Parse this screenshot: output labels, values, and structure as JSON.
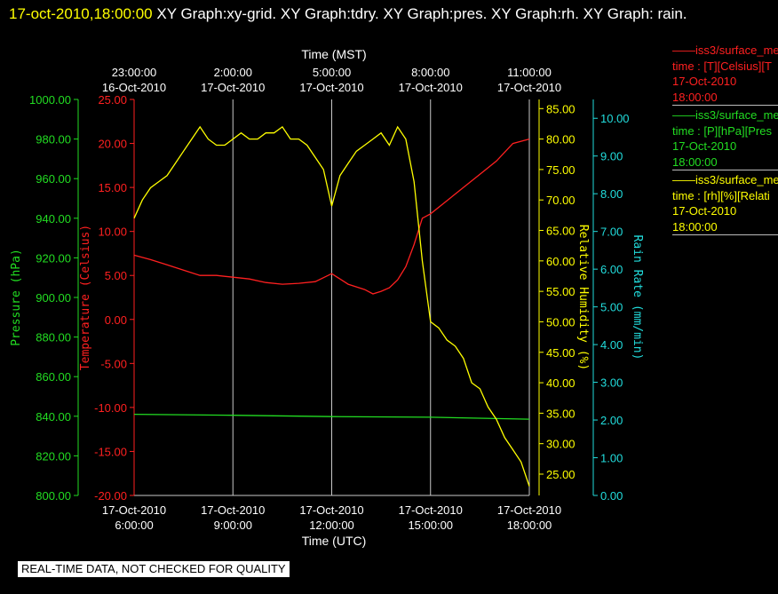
{
  "header": {
    "timestamp": "17-oct-2010,18:00:00",
    "graphs": "XY Graph:xy-grid.  XY Graph:tdry.  XY Graph:pres.  XY Graph:rh.  XY Graph: rain."
  },
  "legend": {
    "items": [
      {
        "series": "iss3/surface_me",
        "line2": "time : [T][Celsius][T",
        "date": "17-Oct-2010",
        "time": "18:00:00",
        "color": "#ff2020"
      },
      {
        "series": "iss3/surface_me",
        "line2": "time : [P][hPa][Pres",
        "date": "17-Oct-2010",
        "time": "18:00:00",
        "color": "#22dd22"
      },
      {
        "series": "iss3/surface_me",
        "line2": "time : [rh][%][Relati",
        "date": "17-Oct-2010",
        "time": "18:00:00",
        "color": "#ffff00"
      }
    ]
  },
  "disclaimer": "REAL-TIME DATA, NOT CHECKED FOR QUALITY",
  "chart_data": {
    "type": "line",
    "x_range_hours_utc": [
      6,
      18
    ],
    "xlabel_bottom": "Time (UTC)",
    "xlabel_top": "Time (MST)",
    "x_ticks_bottom": [
      {
        "h": 6,
        "date": "17-Oct-2010",
        "time": "6:00:00"
      },
      {
        "h": 9,
        "date": "17-Oct-2010",
        "time": "9:00:00"
      },
      {
        "h": 12,
        "date": "17-Oct-2010",
        "time": "12:00:00"
      },
      {
        "h": 15,
        "date": "17-Oct-2010",
        "time": "15:00:00"
      },
      {
        "h": 18,
        "date": "17-Oct-2010",
        "time": "18:00:00"
      }
    ],
    "x_ticks_top": [
      {
        "h": 6,
        "time": "23:00:00",
        "date": "16-Oct-2010"
      },
      {
        "h": 9,
        "time": "2:00:00",
        "date": "17-Oct-2010"
      },
      {
        "h": 12,
        "time": "5:00:00",
        "date": "17-Oct-2010"
      },
      {
        "h": 15,
        "time": "8:00:00",
        "date": "17-Oct-2010"
      },
      {
        "h": 18,
        "time": "11:00:00",
        "date": "17-Oct-2010"
      }
    ],
    "grid": "vertical",
    "axes": {
      "pressure": {
        "label": "Pressure (hPa)",
        "range": [
          800,
          1000
        ],
        "ticks": [
          "800.00",
          "820.00",
          "840.00",
          "860.00",
          "880.00",
          "900.00",
          "920.00",
          "940.00",
          "960.00",
          "980.00",
          "1000.00"
        ],
        "color": "#22dd22"
      },
      "temperature": {
        "label": "Temperature (Celsius)",
        "range": [
          -20,
          25
        ],
        "ticks": [
          "-20.00",
          "-15.00",
          "-10.00",
          "-5.00",
          "0.00",
          "5.00",
          "10.00",
          "15.00",
          "20.00",
          "25.00"
        ],
        "color": "#ff2020"
      },
      "rh": {
        "label": "Relative Humidity (%)",
        "range": [
          21.5,
          86.5
        ],
        "ticks": [
          "25.00",
          "30.00",
          "35.00",
          "40.00",
          "45.00",
          "50.00",
          "55.00",
          "60.00",
          "65.00",
          "70.00",
          "75.00",
          "80.00",
          "85.00"
        ],
        "color": "#ffff00"
      },
      "rain": {
        "label": "Rain Rate (mm/min)",
        "range": [
          0,
          10.5
        ],
        "ticks": [
          "0.00",
          "1.00",
          "2.00",
          "3.00",
          "4.00",
          "5.00",
          "6.00",
          "7.00",
          "8.00",
          "9.00",
          "10.00"
        ],
        "color": "#22dddd"
      }
    },
    "series": [
      {
        "axis": "temperature",
        "color": "#ff2020",
        "x": [
          6,
          6.5,
          7,
          7.5,
          8,
          8.5,
          9,
          9.5,
          10,
          10.5,
          11,
          11.5,
          12,
          12.5,
          13,
          13.25,
          13.5,
          13.75,
          14,
          14.25,
          14.5,
          14.75,
          15,
          15.5,
          16,
          16.5,
          17,
          17.5,
          18
        ],
        "y": [
          7.3,
          6.8,
          6.2,
          5.6,
          5.0,
          5.0,
          4.8,
          4.6,
          4.2,
          4.0,
          4.1,
          4.3,
          5.2,
          4.0,
          3.4,
          2.9,
          3.2,
          3.6,
          4.5,
          6.0,
          8.5,
          11.5,
          12.0,
          13.5,
          15.0,
          16.5,
          18.0,
          20.0,
          20.5
        ]
      },
      {
        "axis": "pressure",
        "color": "#22dd22",
        "x": [
          6,
          9,
          12,
          15,
          18
        ],
        "y": [
          841.0,
          840.5,
          839.8,
          839.5,
          838.5
        ]
      },
      {
        "axis": "rh",
        "color": "#ffff00",
        "x": [
          6,
          6.25,
          6.5,
          6.75,
          7,
          7.25,
          7.5,
          7.75,
          8,
          8.25,
          8.5,
          8.75,
          9,
          9.25,
          9.5,
          9.75,
          10,
          10.25,
          10.5,
          10.75,
          11,
          11.25,
          11.5,
          11.75,
          12,
          12.25,
          12.5,
          12.75,
          13,
          13.25,
          13.5,
          13.75,
          14,
          14.25,
          14.5,
          14.75,
          15,
          15.25,
          15.5,
          15.75,
          16,
          16.25,
          16.5,
          16.75,
          17,
          17.25,
          17.5,
          17.75,
          18
        ],
        "y": [
          67,
          70,
          72,
          73,
          74,
          76,
          78,
          80,
          82,
          80,
          79,
          79,
          80,
          81,
          80,
          80,
          81,
          81,
          82,
          80,
          80,
          79,
          77,
          75,
          69,
          74,
          76,
          78,
          79,
          80,
          81,
          79,
          82,
          80,
          73,
          60,
          50,
          49,
          47,
          46,
          44,
          40,
          39,
          36,
          34,
          31,
          29,
          27,
          23
        ]
      }
    ]
  }
}
